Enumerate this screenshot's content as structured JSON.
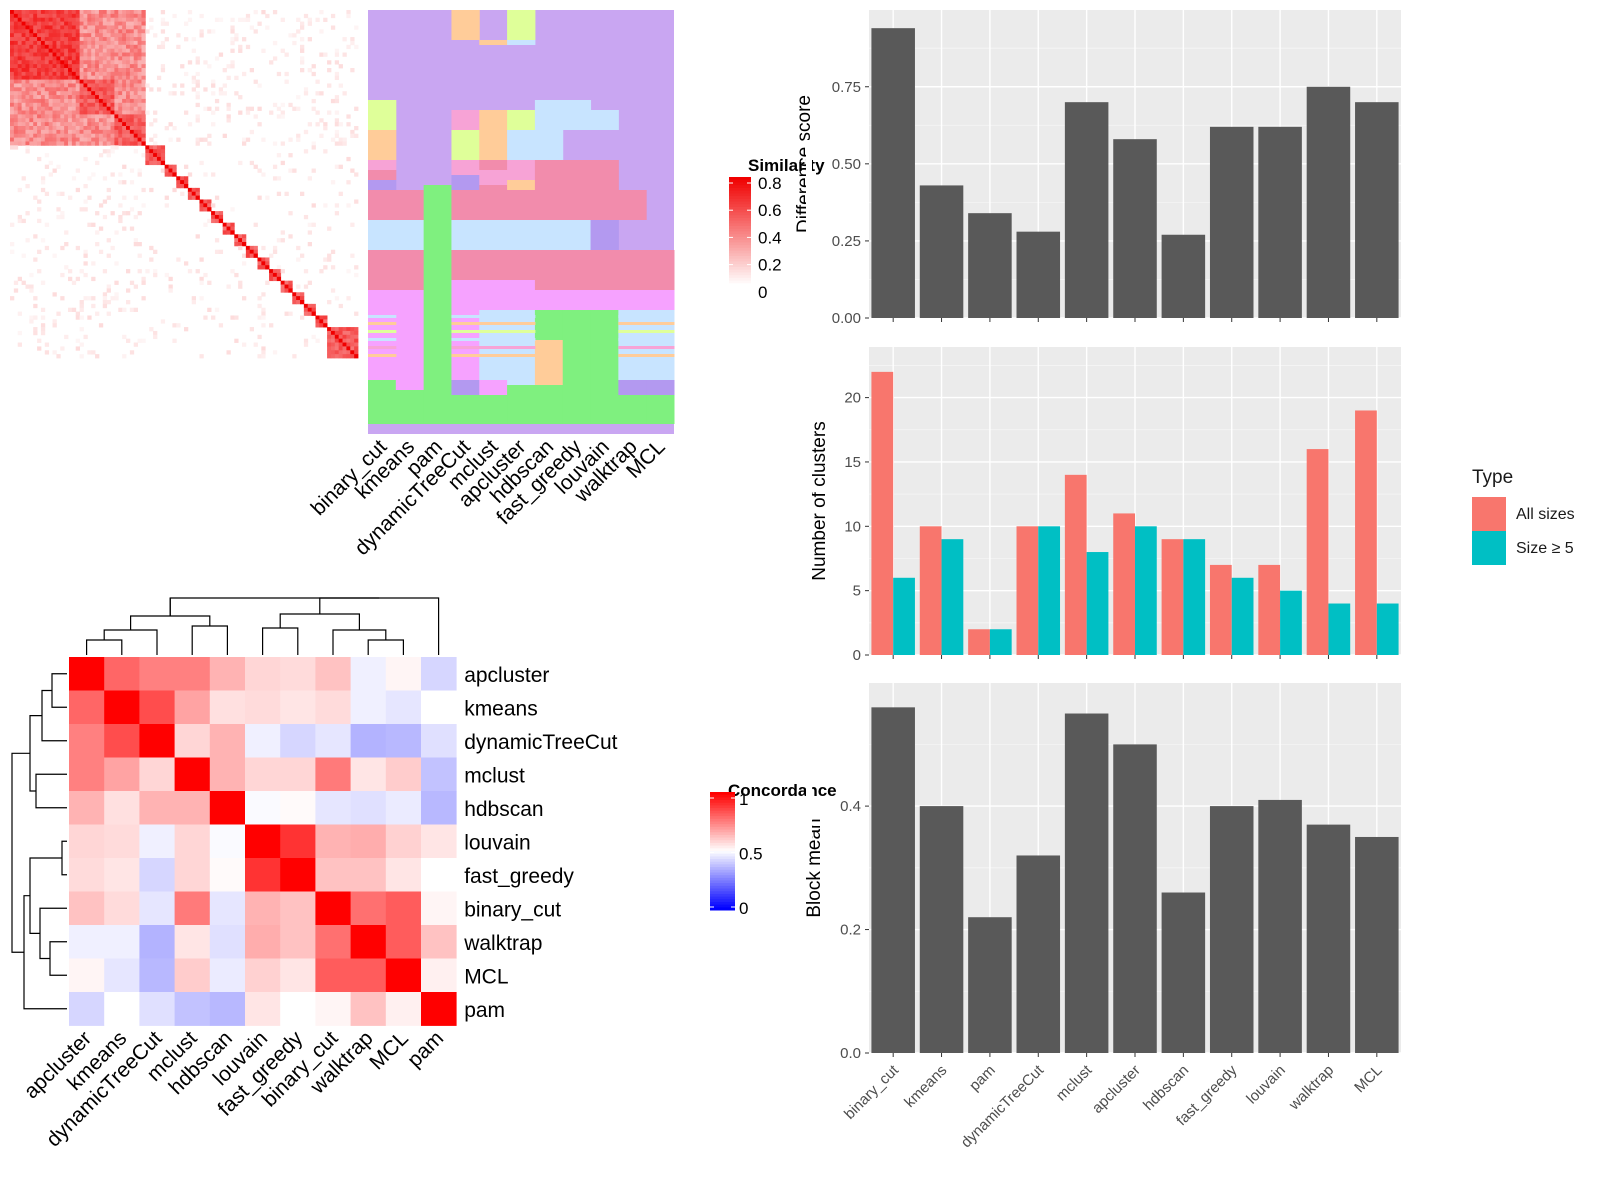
{
  "colors": {
    "panel_bg": "#ebebeb",
    "grid": "#ffffff",
    "bar_gray": "#595959",
    "all_sizes": "#f8766d",
    "size_ge5": "#00bfc4",
    "heat_high": "#ff0000",
    "heat_mid": "#ffffff",
    "heat_low": "#0000ff",
    "cluster_palette": [
      "#c9a6f2",
      "#ffcc99",
      "#dfff99",
      "#f7a3d6",
      "#f28cac",
      "#7ff07f",
      "#c8e4ff",
      "#ee82ee",
      "#f6a2ff",
      "#b399f0"
    ]
  },
  "similarity_legend": {
    "title": "Similarity",
    "ticks": [
      "0.8",
      "0.6",
      "0.4",
      "0.2",
      "0"
    ]
  },
  "concordance_legend": {
    "title": "Concordance",
    "ticks": [
      "1",
      "0.5",
      "0"
    ]
  },
  "methods_top": [
    "binary_cut",
    "kmeans",
    "pam",
    "dynamicTreeCut",
    "mclust",
    "apcluster",
    "hdbscan",
    "fast_greedy",
    "louvain",
    "walktrap",
    "MCL"
  ],
  "heatmap_order": [
    "apcluster",
    "kmeans",
    "dynamicTreeCut",
    "mclust",
    "hdbscan",
    "louvain",
    "fast_greedy",
    "binary_cut",
    "walktrap",
    "MCL",
    "pam"
  ],
  "chart_data": [
    {
      "type": "bar",
      "categories": [
        "binary_cut",
        "kmeans",
        "pam",
        "dynamicTreeCut",
        "mclust",
        "apcluster",
        "hdbscan",
        "fast_greedy",
        "louvain",
        "walktrap",
        "MCL"
      ],
      "values": [
        0.94,
        0.43,
        0.34,
        0.28,
        0.7,
        0.58,
        0.27,
        0.62,
        0.62,
        0.75,
        0.7
      ],
      "ylabel": "Difference score",
      "ylim": [
        0,
        0.96
      ],
      "yticks": [
        "0.00",
        "0.25",
        "0.50",
        "0.75"
      ],
      "ytick_values": [
        0,
        0.25,
        0.5,
        0.75
      ]
    },
    {
      "type": "bar",
      "categories": [
        "binary_cut",
        "kmeans",
        "pam",
        "dynamicTreeCut",
        "mclust",
        "apcluster",
        "hdbscan",
        "fast_greedy",
        "louvain",
        "walktrap",
        "MCL"
      ],
      "series": [
        {
          "name": "All sizes",
          "values": [
            22,
            10,
            2,
            10,
            14,
            11,
            9,
            7,
            7,
            16,
            19
          ]
        },
        {
          "name": "Size ≥ 5",
          "values": [
            6,
            9,
            2,
            10,
            8,
            10,
            9,
            6,
            5,
            4,
            4
          ]
        }
      ],
      "ylabel": "Number of clusters",
      "ylim": [
        0,
        23
      ],
      "yticks": [
        "0",
        "5",
        "10",
        "15",
        "20"
      ],
      "ytick_values": [
        0,
        5,
        10,
        15,
        20
      ],
      "legend_title": "Type",
      "legend_position": "right"
    },
    {
      "type": "bar",
      "categories": [
        "binary_cut",
        "kmeans",
        "pam",
        "dynamicTreeCut",
        "mclust",
        "apcluster",
        "hdbscan",
        "fast_greedy",
        "louvain",
        "walktrap",
        "MCL"
      ],
      "values": [
        0.56,
        0.4,
        0.22,
        0.32,
        0.55,
        0.5,
        0.26,
        0.4,
        0.41,
        0.37,
        0.35
      ],
      "ylabel": "Block mean",
      "ylim": [
        0,
        0.58
      ],
      "yticks": [
        "0.0",
        "0.2",
        "0.4"
      ],
      "ytick_values": [
        0,
        0.2,
        0.4
      ]
    },
    {
      "type": "heatmap",
      "rows": [
        "apcluster",
        "kmeans",
        "dynamicTreeCut",
        "mclust",
        "hdbscan",
        "louvain",
        "fast_greedy",
        "binary_cut",
        "walktrap",
        "MCL",
        "pam"
      ],
      "columns": [
        "apcluster",
        "kmeans",
        "dynamicTreeCut",
        "mclust",
        "hdbscan",
        "louvain",
        "fast_greedy",
        "binary_cut",
        "walktrap",
        "MCL",
        "pam"
      ],
      "values": [
        [
          1.0,
          0.8,
          0.75,
          0.75,
          0.65,
          0.58,
          0.57,
          0.62,
          0.47,
          0.52,
          0.42
        ],
        [
          0.8,
          1.0,
          0.85,
          0.68,
          0.56,
          0.57,
          0.55,
          0.57,
          0.47,
          0.45,
          0.5
        ],
        [
          0.75,
          0.85,
          1.0,
          0.58,
          0.65,
          0.47,
          0.42,
          0.45,
          0.35,
          0.36,
          0.44
        ],
        [
          0.75,
          0.68,
          0.58,
          1.0,
          0.65,
          0.58,
          0.58,
          0.76,
          0.55,
          0.6,
          0.38
        ],
        [
          0.65,
          0.56,
          0.65,
          0.65,
          1.0,
          0.49,
          0.51,
          0.45,
          0.44,
          0.46,
          0.36
        ],
        [
          0.58,
          0.57,
          0.47,
          0.58,
          0.49,
          1.0,
          0.9,
          0.65,
          0.66,
          0.59,
          0.55
        ],
        [
          0.57,
          0.55,
          0.42,
          0.58,
          0.51,
          0.9,
          1.0,
          0.62,
          0.62,
          0.55,
          0.5
        ],
        [
          0.62,
          0.57,
          0.45,
          0.76,
          0.45,
          0.65,
          0.62,
          1.0,
          0.78,
          0.82,
          0.52
        ],
        [
          0.47,
          0.47,
          0.35,
          0.55,
          0.44,
          0.66,
          0.62,
          0.78,
          1.0,
          0.82,
          0.62
        ],
        [
          0.52,
          0.45,
          0.36,
          0.6,
          0.46,
          0.59,
          0.55,
          0.82,
          0.82,
          1.0,
          0.53
        ],
        [
          0.42,
          0.5,
          0.44,
          0.38,
          0.36,
          0.55,
          0.5,
          0.52,
          0.62,
          0.53,
          1.0
        ]
      ],
      "legend_title": "Concordance",
      "range": [
        0,
        1
      ]
    }
  ]
}
